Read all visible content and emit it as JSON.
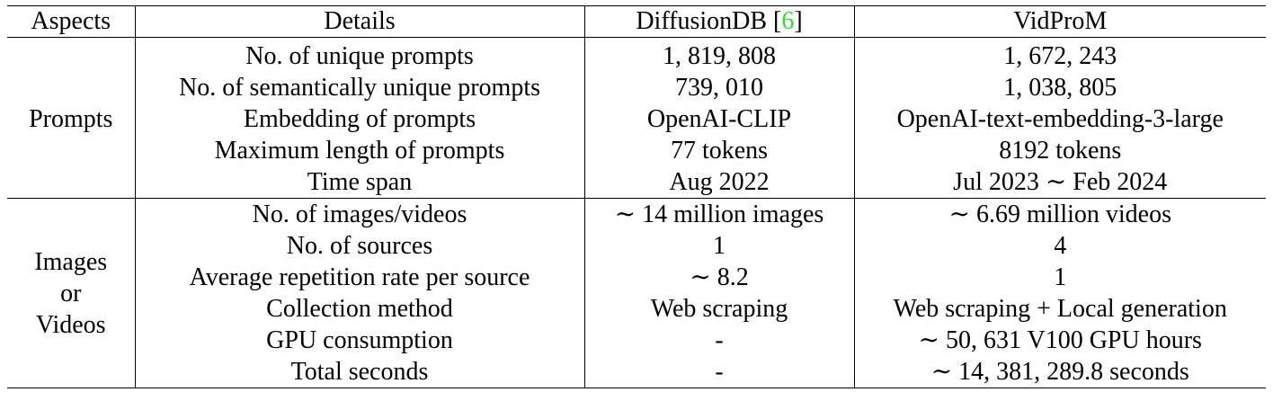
{
  "header": {
    "aspects": "Aspects",
    "details": "Details",
    "diffusiondb_name": "DiffusionDB ",
    "diffusiondb_cite_open": "[",
    "diffusiondb_cite_num": "6",
    "diffusiondb_cite_close": "]",
    "vidprom": "VidProM"
  },
  "groups": {
    "prompts": "Prompts",
    "media_line1": "Images",
    "media_line2": "or",
    "media_line3": "Videos"
  },
  "rows": [
    {
      "detail": "No. of unique prompts",
      "diffusiondb": "1, 819, 808",
      "vidprom": "1, 672, 243"
    },
    {
      "detail": "No. of semantically unique prompts",
      "diffusiondb": "739, 010",
      "vidprom": "1, 038, 805"
    },
    {
      "detail": "Embedding of prompts",
      "diffusiondb": "OpenAI-CLIP",
      "vidprom": "OpenAI-text-embedding-3-large"
    },
    {
      "detail": "Maximum length of prompts",
      "diffusiondb": "77 tokens",
      "vidprom": "8192 tokens"
    },
    {
      "detail": "Time span",
      "diffusiondb": "Aug 2022",
      "vidprom": "Jul 2023 ∼ Feb 2024"
    },
    {
      "detail": "No. of images/videos",
      "diffusiondb": "∼ 14 million images",
      "vidprom": "∼ 6.69 million videos"
    },
    {
      "detail": "No. of sources",
      "diffusiondb": "1",
      "vidprom": "4"
    },
    {
      "detail": "Average repetition rate per source",
      "diffusiondb": "∼ 8.2",
      "vidprom": "1"
    },
    {
      "detail": "Collection method",
      "diffusiondb": "Web scraping",
      "vidprom": "Web scraping + Local generation"
    },
    {
      "detail": "GPU consumption",
      "diffusiondb": "-",
      "vidprom": "∼ 50, 631 V100 GPU hours"
    },
    {
      "detail": "Total seconds",
      "diffusiondb": "-",
      "vidprom": "∼ 14, 381, 289.8 seconds"
    }
  ]
}
